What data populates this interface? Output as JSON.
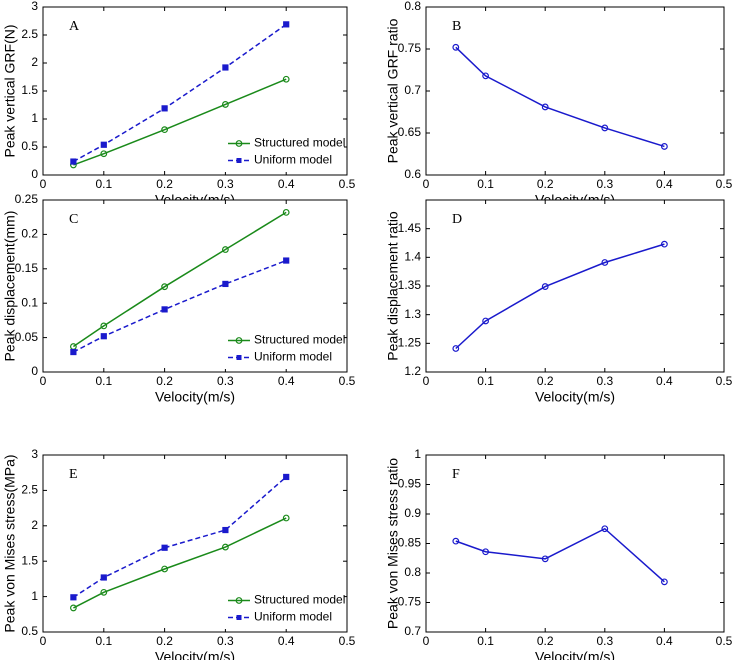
{
  "chart_data": [
    {
      "type": "line",
      "panel_label": "A",
      "xlabel": "Velocity(m/s)",
      "ylabel": "Peak vertical GRF(N)",
      "x": [
        0.05,
        0.1,
        0.2,
        0.3,
        0.4
      ],
      "xlim": [
        0,
        0.5
      ],
      "xticks": [
        0,
        0.1,
        0.2,
        0.3,
        0.4,
        0.5
      ],
      "ylim": [
        0,
        3
      ],
      "yticks": [
        0,
        0.5,
        1,
        1.5,
        2,
        2.5,
        3
      ],
      "legend": "lower right",
      "series": [
        {
          "name": "Structured model",
          "color": "#1a8a1a",
          "marker": "circle",
          "linestyle": "solid",
          "values": [
            0.18,
            0.38,
            0.81,
            1.26,
            1.71
          ]
        },
        {
          "name": "Uniform model",
          "color": "#1a1acc",
          "marker": "square",
          "linestyle": "dashed",
          "values": [
            0.24,
            0.54,
            1.19,
            1.92,
            2.69
          ]
        }
      ]
    },
    {
      "type": "line",
      "panel_label": "B",
      "xlabel": "Velocity(m/s)",
      "ylabel": "Peak vertical GRF ratio",
      "x": [
        0.05,
        0.1,
        0.2,
        0.3,
        0.4
      ],
      "xlim": [
        0,
        0.5
      ],
      "xticks": [
        0,
        0.1,
        0.2,
        0.3,
        0.4,
        0.5
      ],
      "ylim": [
        0.6,
        0.8
      ],
      "yticks": [
        0.6,
        0.65,
        0.7,
        0.75,
        0.8
      ],
      "series": [
        {
          "color": "#1a1acc",
          "marker": "circle",
          "linestyle": "solid",
          "values": [
            0.752,
            0.718,
            0.681,
            0.656,
            0.634
          ]
        }
      ]
    },
    {
      "type": "line",
      "panel_label": "C",
      "xlabel": "Velocity(m/s)",
      "ylabel": "Peak displacement(mm)",
      "x": [
        0.05,
        0.1,
        0.2,
        0.3,
        0.4
      ],
      "xlim": [
        0,
        0.5
      ],
      "xticks": [
        0,
        0.1,
        0.2,
        0.3,
        0.4,
        0.5
      ],
      "ylim": [
        0,
        0.25
      ],
      "yticks": [
        0,
        0.05,
        0.1,
        0.15,
        0.2,
        0.25
      ],
      "legend": "lower right",
      "series": [
        {
          "name": "Structured model",
          "color": "#1a8a1a",
          "marker": "circle",
          "linestyle": "solid",
          "values": [
            0.037,
            0.067,
            0.124,
            0.178,
            0.232
          ]
        },
        {
          "name": "Uniform model",
          "color": "#1a1acc",
          "marker": "square",
          "linestyle": "dashed",
          "values": [
            0.029,
            0.052,
            0.091,
            0.128,
            0.162
          ]
        }
      ]
    },
    {
      "type": "line",
      "panel_label": "D",
      "xlabel": "Velocity(m/s)",
      "ylabel": "Peak displacement ratio",
      "x": [
        0.05,
        0.1,
        0.2,
        0.3,
        0.4
      ],
      "xlim": [
        0,
        0.5
      ],
      "xticks": [
        0,
        0.1,
        0.2,
        0.3,
        0.4,
        0.5
      ],
      "ylim": [
        1.2,
        1.5
      ],
      "yticks": [
        1.2,
        1.25,
        1.3,
        1.35,
        1.4,
        1.45
      ],
      "series": [
        {
          "color": "#1a1acc",
          "marker": "circle",
          "linestyle": "solid",
          "values": [
            1.241,
            1.289,
            1.349,
            1.391,
            1.423
          ]
        }
      ]
    },
    {
      "type": "line",
      "panel_label": "E",
      "xlabel": "Velocity(m/s)",
      "ylabel": "Peak von Mises stress(MPa)",
      "x": [
        0.05,
        0.1,
        0.2,
        0.3,
        0.4
      ],
      "xlim": [
        0,
        0.5
      ],
      "xticks": [
        0,
        0.1,
        0.2,
        0.3,
        0.4,
        0.5
      ],
      "ylim": [
        0.5,
        3
      ],
      "yticks": [
        0.5,
        1,
        1.5,
        2,
        2.5,
        3
      ],
      "legend": "lower right",
      "series": [
        {
          "name": "Structured model",
          "color": "#1a8a1a",
          "marker": "circle",
          "linestyle": "solid",
          "values": [
            0.84,
            1.06,
            1.39,
            1.7,
            2.11
          ]
        },
        {
          "name": "Uniform model",
          "color": "#1a1acc",
          "marker": "square",
          "linestyle": "dashed",
          "values": [
            0.99,
            1.27,
            1.69,
            1.94,
            2.69
          ]
        }
      ]
    },
    {
      "type": "line",
      "panel_label": "F",
      "xlabel": "Velocity(m/s)",
      "ylabel": "Peak von Mises stress ratio",
      "x": [
        0.05,
        0.1,
        0.2,
        0.3,
        0.4
      ],
      "xlim": [
        0,
        0.5
      ],
      "xticks": [
        0,
        0.1,
        0.2,
        0.3,
        0.4,
        0.5
      ],
      "ylim": [
        0.7,
        1
      ],
      "yticks": [
        0.7,
        0.75,
        0.8,
        0.85,
        0.9,
        0.95,
        1
      ],
      "series": [
        {
          "color": "#1a1acc",
          "marker": "circle",
          "linestyle": "solid",
          "values": [
            0.854,
            0.836,
            0.824,
            0.875,
            0.785
          ]
        }
      ]
    }
  ]
}
